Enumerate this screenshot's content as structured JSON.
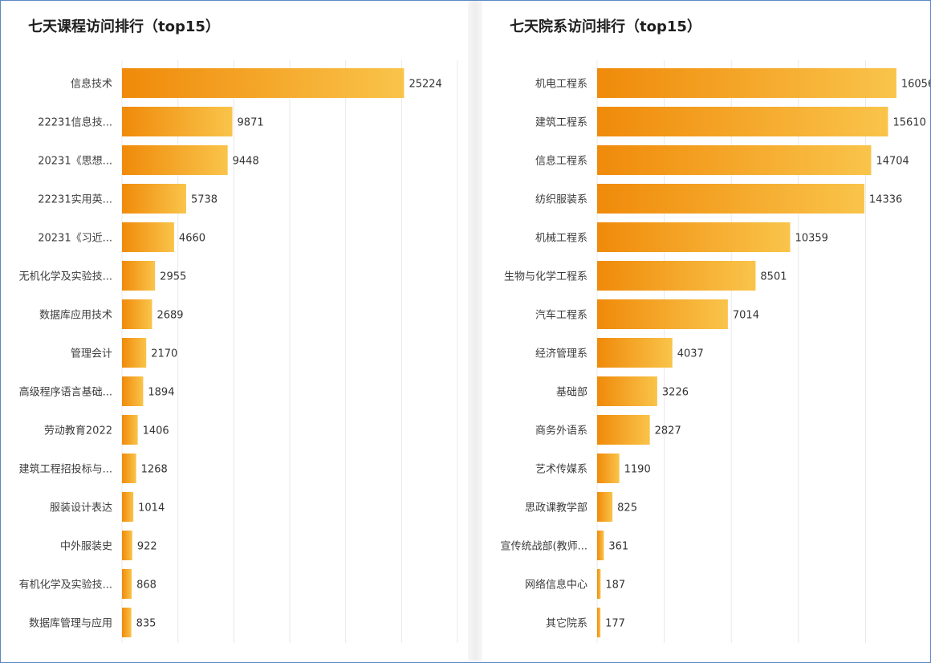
{
  "colors": {
    "bar_start": "#f08a0a",
    "bar_end": "#f9c44a",
    "grid": "#e8e8e8",
    "text": "#3c3c3c"
  },
  "chart_data": [
    {
      "type": "bar",
      "orientation": "horizontal",
      "title": "七天课程访问排行（top15）",
      "xlabel": "",
      "ylabel": "",
      "grid": true,
      "xlim": [
        0,
        30000
      ],
      "categories": [
        "信息技术",
        "22231信息技...",
        "20231《思想...",
        "22231实用英...",
        "20231《习近...",
        "无机化学及实验技...",
        "数据库应用技术",
        "管理会计",
        "高级程序语言基础...",
        "劳动教育2022",
        "建筑工程招投标与...",
        "服装设计表达",
        "中外服装史",
        "有机化学及实验技...",
        "数据库管理与应用"
      ],
      "values": [
        25224,
        9871,
        9448,
        5738,
        4660,
        2955,
        2689,
        2170,
        1894,
        1406,
        1268,
        1014,
        922,
        868,
        835
      ]
    },
    {
      "type": "bar",
      "orientation": "horizontal",
      "title": "七天院系访问排行（top15）",
      "xlabel": "",
      "ylabel": "",
      "grid": true,
      "xlim": [
        0,
        18000
      ],
      "categories": [
        "机电工程系",
        "建筑工程系",
        "信息工程系",
        "纺织服装系",
        "机械工程系",
        "生物与化学工程系",
        "汽车工程系",
        "经济管理系",
        "基础部",
        "商务外语系",
        "艺术传媒系",
        "思政课教学部",
        "宣传统战部(教师...",
        "网络信息中心",
        "其它院系"
      ],
      "values": [
        16056,
        15610,
        14704,
        14336,
        10359,
        8501,
        7014,
        4037,
        3226,
        2827,
        1190,
        825,
        361,
        187,
        177
      ]
    }
  ]
}
